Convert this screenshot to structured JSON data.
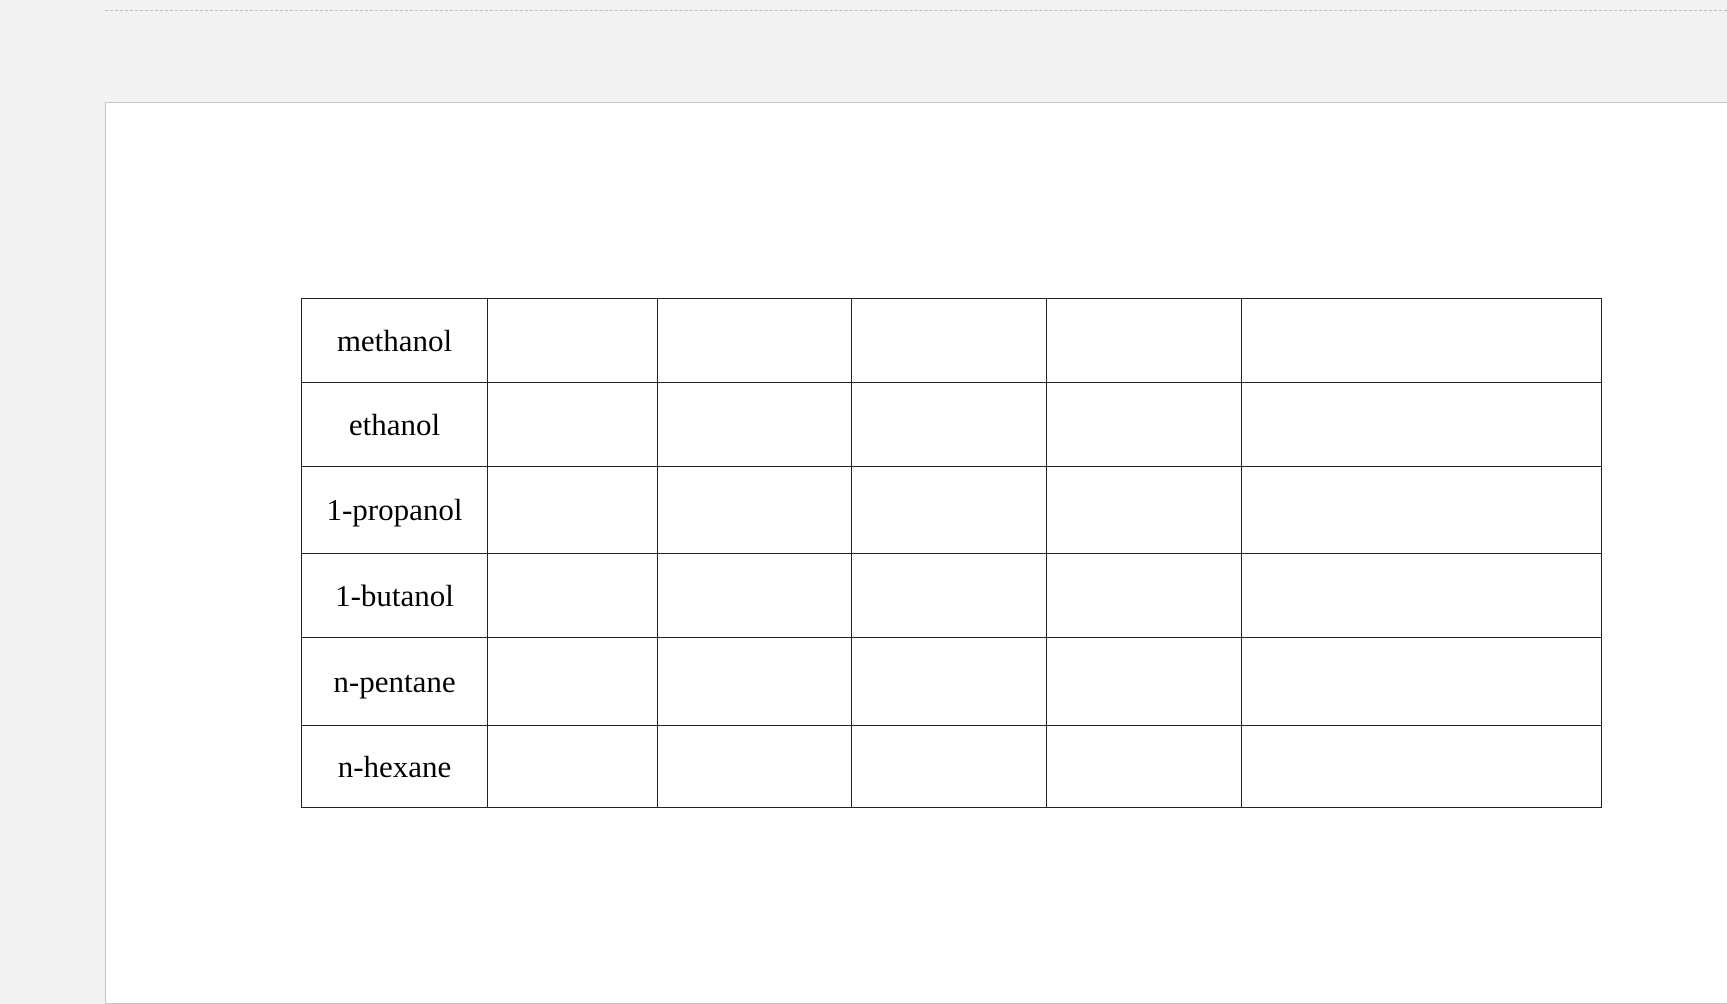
{
  "table": {
    "rows": [
      {
        "label": "methanol",
        "cells": [
          "",
          "",
          "",
          "",
          ""
        ]
      },
      {
        "label": "ethanol",
        "cells": [
          "",
          "",
          "",
          "",
          ""
        ]
      },
      {
        "label": "1-propanol",
        "cells": [
          "",
          "",
          "",
          "",
          ""
        ]
      },
      {
        "label": "1-butanol",
        "cells": [
          "",
          "",
          "",
          "",
          ""
        ]
      },
      {
        "label": "n-pentane",
        "cells": [
          "",
          "",
          "",
          "",
          ""
        ]
      },
      {
        "label": "n-hexane",
        "cells": [
          "",
          "",
          "",
          "",
          ""
        ]
      }
    ]
  }
}
